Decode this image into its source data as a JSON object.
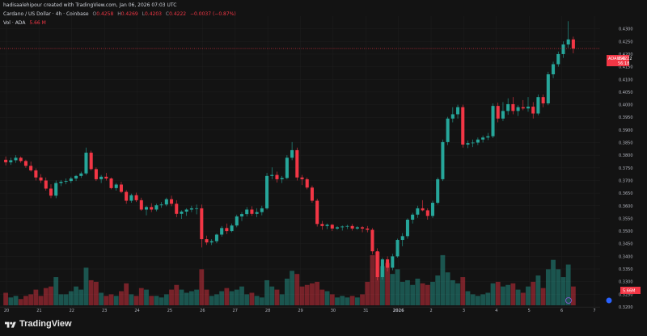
{
  "header": {
    "credit": "hadisaalehipour created with TradingView.com, Jan 06, 2026 07:03 UTC",
    "symbol": "Cardano / US Dollar · 4h · Coinbase",
    "open_label": "O",
    "open": "0.4258",
    "high_label": "H",
    "high": "0.4269",
    "low_label": "L",
    "low": "0.4203",
    "close_label": "C",
    "close": "0.4222",
    "change": "−0.0037 (−0.87%)",
    "volume_line": "Vol · ADA",
    "volume_value": "5.66 M"
  },
  "price_tag": {
    "symbol": "ADAUSD",
    "price": "0.4222",
    "countdown": "56:18",
    "volume_tag": "5.66M"
  },
  "brand": {
    "name": "TradingView"
  },
  "colors": {
    "up": "#26a69a",
    "down": "#f23645",
    "background": "#131313",
    "grid": "#1f1f1f"
  },
  "chart_data": {
    "type": "candlestick",
    "interval": "4h",
    "ylim": [
      0.32,
      0.435
    ],
    "price_ticks": [
      "0.4300",
      "0.4250",
      "0.4200",
      "0.4150",
      "0.4100",
      "0.4050",
      "0.4000",
      "0.3950",
      "0.3900",
      "0.3850",
      "0.3800",
      "0.3750",
      "0.3700",
      "0.3650",
      "0.3600",
      "0.3550",
      "0.3500",
      "0.3450",
      "0.3400",
      "0.3350",
      "0.3300",
      "0.3250",
      "0.3200"
    ],
    "x_ticks": [
      "20",
      "21",
      "22",
      "23",
      "24",
      "25",
      "26",
      "27",
      "28",
      "29",
      "30",
      "31",
      "2026",
      "2",
      "3",
      "4",
      "5",
      "6",
      "7"
    ],
    "current_price": 0.4222,
    "candles": [
      [
        0.3782,
        0.3795,
        0.376,
        0.3772,
        0.8
      ],
      [
        0.3772,
        0.379,
        0.3762,
        0.378,
        0.5
      ],
      [
        0.378,
        0.38,
        0.377,
        0.379,
        0.6
      ],
      [
        0.379,
        0.3795,
        0.377,
        0.3777,
        0.4
      ],
      [
        0.3777,
        0.3782,
        0.375,
        0.3758,
        0.6
      ],
      [
        0.3758,
        0.3775,
        0.3735,
        0.374,
        0.7
      ],
      [
        0.374,
        0.3748,
        0.37,
        0.3712,
        1.0
      ],
      [
        0.3712,
        0.3725,
        0.369,
        0.37,
        0.6
      ],
      [
        0.37,
        0.3712,
        0.366,
        0.3668,
        1.1
      ],
      [
        0.3668,
        0.3685,
        0.363,
        0.364,
        1.2
      ],
      [
        0.364,
        0.37,
        0.363,
        0.369,
        1.8
      ],
      [
        0.369,
        0.3702,
        0.3678,
        0.3695,
        0.7
      ],
      [
        0.3695,
        0.3708,
        0.3685,
        0.3698,
        0.7
      ],
      [
        0.3698,
        0.3715,
        0.369,
        0.3708,
        0.9
      ],
      [
        0.3708,
        0.3722,
        0.3698,
        0.3718,
        1.2
      ],
      [
        0.3718,
        0.3735,
        0.371,
        0.3728,
        1.0
      ],
      [
        0.3728,
        0.383,
        0.3722,
        0.381,
        2.4
      ],
      [
        0.381,
        0.3818,
        0.374,
        0.3745,
        1.6
      ],
      [
        0.3745,
        0.3752,
        0.3698,
        0.3705,
        1.5
      ],
      [
        0.3705,
        0.3722,
        0.369,
        0.3715,
        0.8
      ],
      [
        0.3715,
        0.373,
        0.37,
        0.3708,
        0.6
      ],
      [
        0.3708,
        0.3712,
        0.3665,
        0.367,
        0.7
      ],
      [
        0.367,
        0.369,
        0.366,
        0.3684,
        0.6
      ],
      [
        0.3684,
        0.3695,
        0.365,
        0.3655,
        0.9
      ],
      [
        0.3655,
        0.3662,
        0.3608,
        0.362,
        1.4
      ],
      [
        0.362,
        0.3648,
        0.3612,
        0.3642,
        0.7
      ],
      [
        0.3642,
        0.3652,
        0.3615,
        0.3622,
        0.6
      ],
      [
        0.3622,
        0.3632,
        0.358,
        0.3585,
        1.1
      ],
      [
        0.3585,
        0.36,
        0.3562,
        0.3595,
        1.0
      ],
      [
        0.3595,
        0.361,
        0.3575,
        0.3585,
        0.6
      ],
      [
        0.3585,
        0.3608,
        0.3578,
        0.3602,
        0.6
      ],
      [
        0.3602,
        0.3615,
        0.3592,
        0.3605,
        0.5
      ],
      [
        0.3605,
        0.3632,
        0.3598,
        0.3626,
        0.7
      ],
      [
        0.3626,
        0.364,
        0.3598,
        0.3608,
        1.0
      ],
      [
        0.3608,
        0.3622,
        0.3555,
        0.3568,
        1.3
      ],
      [
        0.3568,
        0.3582,
        0.3548,
        0.3577,
        1.0
      ],
      [
        0.3577,
        0.359,
        0.356,
        0.3585,
        0.8
      ],
      [
        0.3585,
        0.36,
        0.3575,
        0.359,
        0.9
      ],
      [
        0.359,
        0.3605,
        0.3566,
        0.359,
        1.0
      ],
      [
        0.359,
        0.3605,
        0.3435,
        0.3468,
        2.3
      ],
      [
        0.3468,
        0.3482,
        0.3445,
        0.3455,
        1.0
      ],
      [
        0.3455,
        0.3468,
        0.3445,
        0.346,
        0.6
      ],
      [
        0.346,
        0.349,
        0.3452,
        0.3486,
        0.7
      ],
      [
        0.3486,
        0.352,
        0.3478,
        0.3512,
        0.9
      ],
      [
        0.3512,
        0.353,
        0.3488,
        0.35,
        1.1
      ],
      [
        0.35,
        0.353,
        0.3495,
        0.3522,
        0.9
      ],
      [
        0.3522,
        0.3565,
        0.3515,
        0.3558,
        1.0
      ],
      [
        0.3558,
        0.3575,
        0.354,
        0.3567,
        1.2
      ],
      [
        0.3567,
        0.3595,
        0.3558,
        0.3585,
        0.7
      ],
      [
        0.3585,
        0.3598,
        0.356,
        0.3568,
        0.8
      ],
      [
        0.3568,
        0.359,
        0.3555,
        0.3575,
        0.6
      ],
      [
        0.3575,
        0.36,
        0.3562,
        0.359,
        0.5
      ],
      [
        0.359,
        0.373,
        0.3585,
        0.3718,
        1.6
      ],
      [
        0.3718,
        0.3752,
        0.3705,
        0.3722,
        1.2
      ],
      [
        0.3722,
        0.3735,
        0.3692,
        0.3705,
        1.0
      ],
      [
        0.3705,
        0.3718,
        0.369,
        0.371,
        0.7
      ],
      [
        0.371,
        0.38,
        0.3705,
        0.379,
        1.7
      ],
      [
        0.379,
        0.3852,
        0.378,
        0.382,
        2.2
      ],
      [
        0.382,
        0.383,
        0.37,
        0.3712,
        2.0
      ],
      [
        0.3712,
        0.3722,
        0.3682,
        0.3705,
        1.2
      ],
      [
        0.3705,
        0.3712,
        0.3665,
        0.3672,
        1.3
      ],
      [
        0.3672,
        0.368,
        0.3612,
        0.362,
        1.4
      ],
      [
        0.362,
        0.3628,
        0.3518,
        0.3528,
        1.5
      ],
      [
        0.3528,
        0.354,
        0.3505,
        0.352,
        1.0
      ],
      [
        0.352,
        0.353,
        0.3508,
        0.3525,
        0.9
      ],
      [
        0.3525,
        0.3528,
        0.35,
        0.351,
        0.7
      ],
      [
        0.351,
        0.352,
        0.3505,
        0.3515,
        0.5
      ],
      [
        0.3515,
        0.3522,
        0.3502,
        0.3518,
        0.6
      ],
      [
        0.3518,
        0.3525,
        0.3508,
        0.352,
        0.5
      ],
      [
        0.352,
        0.3528,
        0.3502,
        0.351,
        0.6
      ],
      [
        0.351,
        0.352,
        0.3505,
        0.3515,
        0.5
      ],
      [
        0.3515,
        0.352,
        0.3495,
        0.351,
        0.7
      ],
      [
        0.351,
        0.352,
        0.3495,
        0.3505,
        1.5
      ],
      [
        0.3505,
        0.3512,
        0.3408,
        0.342,
        3.2
      ],
      [
        0.342,
        0.3432,
        0.3305,
        0.3318,
        3.4
      ],
      [
        0.3318,
        0.3395,
        0.3308,
        0.3388,
        2.5
      ],
      [
        0.3388,
        0.34,
        0.334,
        0.3355,
        2.7
      ],
      [
        0.3355,
        0.341,
        0.3345,
        0.34,
        2.0
      ],
      [
        0.34,
        0.347,
        0.3395,
        0.3465,
        2.3
      ],
      [
        0.3465,
        0.3492,
        0.344,
        0.348,
        1.5
      ],
      [
        0.348,
        0.355,
        0.347,
        0.3545,
        1.6
      ],
      [
        0.3545,
        0.3572,
        0.353,
        0.3565,
        1.3
      ],
      [
        0.3565,
        0.36,
        0.3552,
        0.359,
        1.7
      ],
      [
        0.359,
        0.3622,
        0.3578,
        0.3582,
        1.4
      ],
      [
        0.3582,
        0.359,
        0.3545,
        0.356,
        1.3
      ],
      [
        0.356,
        0.362,
        0.3552,
        0.3612,
        1.5
      ],
      [
        0.3612,
        0.3712,
        0.3605,
        0.3705,
        1.9
      ],
      [
        0.3705,
        0.3862,
        0.3698,
        0.3852,
        3.2
      ],
      [
        0.3852,
        0.3952,
        0.384,
        0.3945,
        2.1
      ],
      [
        0.3945,
        0.399,
        0.393,
        0.3962,
        1.6
      ],
      [
        0.3962,
        0.4,
        0.3945,
        0.399,
        1.4
      ],
      [
        0.399,
        0.4,
        0.383,
        0.3842,
        1.8
      ],
      [
        0.3842,
        0.3858,
        0.3828,
        0.3848,
        0.9
      ],
      [
        0.3848,
        0.3862,
        0.3832,
        0.385,
        0.7
      ],
      [
        0.385,
        0.387,
        0.384,
        0.3862,
        0.6
      ],
      [
        0.3862,
        0.3878,
        0.385,
        0.387,
        0.7
      ],
      [
        0.387,
        0.3888,
        0.386,
        0.3875,
        0.8
      ],
      [
        0.3875,
        0.4005,
        0.3868,
        0.3995,
        1.4
      ],
      [
        0.3995,
        0.4008,
        0.393,
        0.3945,
        1.5
      ],
      [
        0.3945,
        0.401,
        0.3935,
        0.3975,
        1.2
      ],
      [
        0.3975,
        0.4025,
        0.396,
        0.4002,
        1.3
      ],
      [
        0.4002,
        0.403,
        0.3962,
        0.3975,
        1.4
      ],
      [
        0.3975,
        0.3998,
        0.3955,
        0.399,
        1.0
      ],
      [
        0.399,
        0.4018,
        0.3978,
        0.3985,
        0.8
      ],
      [
        0.3985,
        0.403,
        0.3972,
        0.3992,
        1.2
      ],
      [
        0.3992,
        0.401,
        0.3945,
        0.3965,
        1.5
      ],
      [
        0.3965,
        0.404,
        0.3958,
        0.403,
        1.9
      ],
      [
        0.403,
        0.404,
        0.399,
        0.4005,
        1.1
      ],
      [
        0.4005,
        0.413,
        0.3998,
        0.412,
        2.3
      ],
      [
        0.412,
        0.417,
        0.4105,
        0.416,
        2.9
      ],
      [
        0.416,
        0.421,
        0.415,
        0.42,
        2.3
      ],
      [
        0.42,
        0.425,
        0.4185,
        0.4238,
        1.8
      ],
      [
        0.4238,
        0.433,
        0.4225,
        0.4258,
        2.6
      ],
      [
        0.4258,
        0.4269,
        0.4203,
        0.4222,
        1.2
      ]
    ]
  }
}
